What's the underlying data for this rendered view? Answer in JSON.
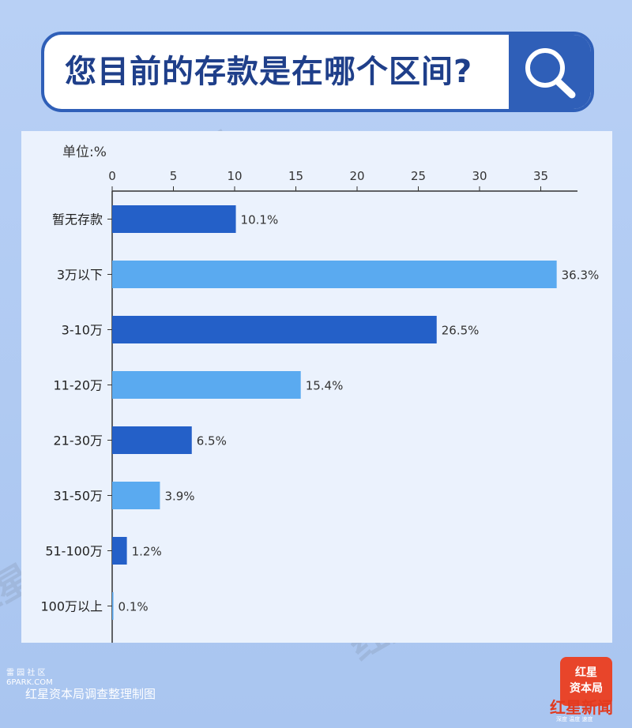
{
  "title": "您目前的存款是在哪个区间?",
  "unit_label": "单位:%",
  "source": "红星资本局调查整理制图",
  "stamp": "雷 园 社 区\n6PARK.COM",
  "watermark_text": "红星资本局",
  "logo": {
    "line1": "红星",
    "line2": "资本局",
    "brand": "红星新闻",
    "tagline": "深度 温度 速度"
  },
  "colors": {
    "dark_bar": "#2460c8",
    "light_bar": "#5aaaf0",
    "title_border": "#2f5fb8"
  },
  "chart_data": {
    "type": "bar",
    "orientation": "horizontal",
    "categories": [
      "暂无存款",
      "3万以下",
      "3-10万",
      "11-20万",
      "21-30万",
      "31-50万",
      "51-100万",
      "100万以上"
    ],
    "values": [
      10.1,
      36.3,
      26.5,
      15.4,
      6.5,
      3.9,
      1.2,
      0.1
    ],
    "value_labels": [
      "10.1%",
      "36.3%",
      "26.5%",
      "15.4%",
      "6.5%",
      "3.9%",
      "1.2%",
      "0.1%"
    ],
    "x_ticks": [
      0,
      5,
      10,
      15,
      20,
      25,
      30,
      35
    ],
    "xlim": [
      0,
      38
    ],
    "x_axis_position": "top",
    "grid": false,
    "title": "您目前的存款是在哪个区间?"
  }
}
